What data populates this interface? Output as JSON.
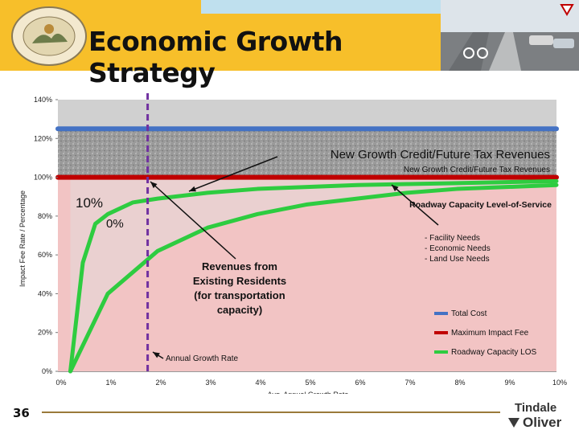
{
  "slide": {
    "title": "Economic Growth Strategy",
    "page_number": "36",
    "seal_text": "MARION COUNTY · IN GOD WE TRUST",
    "logo_line1": "Tindale",
    "logo_line2": "Oliver"
  },
  "colors": {
    "banner": "#f7bf2a",
    "total_cost": "#4472c4",
    "max_impact_fee": "#c00000",
    "roadway_los": "#2ecc40",
    "growth_rate_line": "#7030a0"
  },
  "chart_data": {
    "type": "line",
    "xlabel": "Avg. Annual Growth Rate",
    "ylabel": "Impact Fee Rate / Percentage",
    "x_ticks": [
      "0%",
      "1%",
      "2%",
      "3%",
      "4%",
      "5%",
      "6%",
      "7%",
      "8%",
      "9%",
      "10%"
    ],
    "y_ticks": [
      "0%",
      "20%",
      "40%",
      "60%",
      "80%",
      "100%",
      "120%",
      "140%"
    ],
    "xlim": [
      0,
      10
    ],
    "ylim": [
      0,
      140
    ],
    "series": [
      {
        "name": "Total Cost",
        "color": "#4472c4",
        "x": [
          0,
          10
        ],
        "y": [
          125,
          125
        ]
      },
      {
        "name": "Maximum Impact Fee",
        "color": "#c00000",
        "x": [
          0,
          10
        ],
        "y": [
          100,
          100
        ]
      },
      {
        "name": "Roadway Capacity LOS",
        "color": "#2ecc40",
        "x": [
          0.25,
          0.5,
          0.75,
          1,
          1.5,
          2,
          3,
          4,
          5,
          6,
          7,
          8,
          9,
          10
        ],
        "y": [
          0,
          56,
          76,
          81,
          87,
          89,
          92,
          94,
          95,
          96,
          96.5,
          97,
          97.5,
          98
        ]
      },
      {
        "name": "Roadway Capacity LOS",
        "color": "#2ecc40",
        "x": [
          0.25,
          1,
          2,
          3,
          4,
          5,
          6,
          7,
          8,
          9,
          10
        ],
        "y": [
          0,
          40,
          62,
          74,
          81,
          86,
          89,
          92,
          94,
          95,
          96
        ]
      }
    ],
    "growth_rate_marker_x": 1.8,
    "annotations": {
      "new_growth_large": "New Growth Credit/Future Tax Revenues",
      "new_growth_small": "New Growth Credit/Future Tax Revenues",
      "ten_percent": "10%",
      "partial_percent": "0%",
      "roadway_los_title": "Roadway Capacity Level-of-Service",
      "needs": [
        "- Facility Needs",
        "- Economic Needs",
        "- Land Use Needs"
      ],
      "revenues": [
        "Revenues from",
        "Existing Residents",
        "(for transportation",
        "capacity)"
      ],
      "annual_growth_rate": "Annual Growth Rate"
    },
    "legend": [
      "Total Cost",
      "Maximum Impact Fee",
      "Roadway Capacity LOS"
    ],
    "legend_position": "bottom-right"
  }
}
